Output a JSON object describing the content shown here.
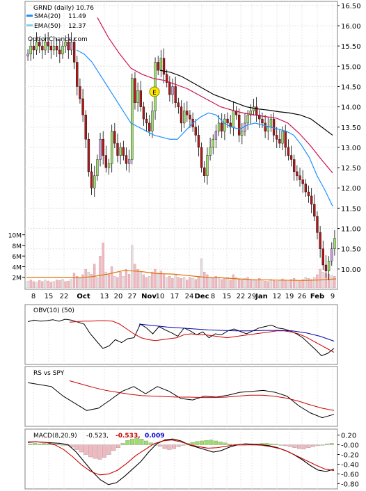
{
  "chart_data": [
    {
      "type": "candlestick",
      "title": "GRND (daily) 10.76",
      "watermark": "OptionChance.com",
      "event_marker": "E",
      "legend": [
        {
          "name": "SMA(20)",
          "value": "11.49",
          "color": "#1e90ff"
        },
        {
          "name": "EMA(50)",
          "value": "12.37",
          "color": "#87ceeb"
        }
      ],
      "ylim": [
        9.5,
        16.6
      ],
      "y_ticks": [
        "16.50",
        "16.00",
        "15.50",
        "15.00",
        "14.50",
        "14.00",
        "13.50",
        "13.00",
        "12.50",
        "12.00",
        "11.50",
        "11.00",
        "10.50",
        "10.00"
      ],
      "x_tick_labels": [
        "8",
        "15",
        "22",
        "Oct",
        "13",
        "20",
        "27",
        "Nov",
        "10",
        "17",
        "24",
        "Dec",
        "8",
        "15",
        "22",
        "29",
        "Jan",
        "12",
        "19",
        "26",
        "Feb",
        "9"
      ],
      "close_series": [
        15.3,
        15.5,
        15.4,
        15.6,
        15.5,
        15.4,
        15.6,
        15.5,
        15.4,
        15.5,
        15.4,
        15.3,
        15.5,
        15.6,
        15.4,
        15.6,
        15.1,
        14.5,
        14.2,
        13.8,
        13.2,
        12.4,
        12.0,
        12.3,
        12.7,
        13.2,
        12.8,
        12.5,
        12.6,
        13.4,
        13.1,
        12.8,
        13.0,
        12.8,
        12.6,
        12.7,
        14.7,
        14.1,
        14.4,
        14.0,
        13.7,
        13.6,
        13.4,
        13.9,
        15.1,
        14.9,
        15.2,
        14.8,
        14.6,
        14.3,
        14.5,
        14.1,
        14.0,
        13.6,
        13.9,
        13.8,
        13.7,
        13.5,
        13.3,
        13.0,
        12.5,
        12.3,
        12.8,
        13.0,
        13.2,
        13.4,
        13.6,
        13.4,
        13.7,
        13.6,
        13.5,
        13.9,
        13.8,
        13.3,
        13.4,
        13.6,
        13.8,
        13.9,
        14.0,
        13.8,
        13.7,
        13.6,
        13.4,
        13.5,
        13.7,
        13.3,
        13.2,
        13.1,
        13.4,
        13.0,
        12.8,
        12.7,
        12.4,
        12.3,
        12.2,
        12.1,
        11.9,
        11.8,
        11.6,
        11.3,
        10.9,
        10.5,
        10.1,
        9.95,
        10.2,
        10.5,
        10.76
      ],
      "sma20_series": [
        15.4,
        15.3,
        15.1,
        14.8,
        14.5,
        14.2,
        13.9,
        13.6,
        13.5,
        13.4,
        13.3,
        13.25,
        13.2,
        13.2,
        13.4,
        13.6,
        13.75,
        13.85,
        13.8,
        13.6,
        13.5,
        13.45,
        13.55,
        13.6,
        13.55,
        13.5,
        13.45,
        13.4,
        13.3,
        13.05,
        12.75,
        12.3,
        11.95,
        11.55
      ],
      "ema50_series": [
        16.2,
        15.7,
        15.3,
        14.95,
        14.8,
        14.7,
        14.65,
        14.55,
        14.45,
        14.3,
        14.15,
        14.0,
        13.92,
        13.85,
        13.8,
        13.76,
        13.72,
        13.6,
        13.35,
        13.05,
        12.7,
        12.37
      ],
      "sma50_series": [
        14.9,
        14.85,
        14.75,
        14.6,
        14.45,
        14.3,
        14.2,
        14.1,
        14.0,
        13.95,
        13.92,
        13.88,
        13.85,
        13.8,
        13.7,
        13.5,
        13.3
      ],
      "volume": {
        "y_ticks": [
          "10M",
          "8M",
          "6M",
          "4M",
          "2M"
        ],
        "ylim": [
          0,
          11
        ],
        "values_millions": [
          1.3,
          1.5,
          1.2,
          1.1,
          1.4,
          1.2,
          1.5,
          1.3,
          1.1,
          1.2,
          1.5,
          1.4,
          1.6,
          1.2,
          1.3,
          1.6,
          2.8,
          2.2,
          1.8,
          2.5,
          3.5,
          3.0,
          2.6,
          4.5,
          2.0,
          6.0,
          8.5,
          3.0,
          2.5,
          4.0,
          2.2,
          2.0,
          3.0,
          2.2,
          3.5,
          2.6,
          8.0,
          4.5,
          3.5,
          3.0,
          2.5,
          2.0,
          2.2,
          3.0,
          3.5,
          2.8,
          3.2,
          2.5,
          2.0,
          2.2,
          1.8,
          2.5,
          2.0,
          1.8,
          2.0,
          1.5,
          2.0,
          1.8,
          1.6,
          2.2,
          5.5,
          3.0,
          2.5,
          2.0,
          1.8,
          2.2,
          2.0,
          1.6,
          1.8,
          2.0,
          1.5,
          2.5,
          2.0,
          1.6,
          1.5,
          1.8,
          2.0,
          1.6,
          1.4,
          1.5,
          1.8,
          1.5,
          1.3,
          1.2,
          1.6,
          1.5,
          1.3,
          1.4,
          1.7,
          1.5,
          1.3,
          1.6,
          1.8,
          1.5,
          1.3,
          1.6,
          2.0,
          1.8,
          1.6,
          2.0,
          2.5,
          3.5,
          3.0,
          2.8,
          2.6,
          2.3,
          2.2
        ],
        "avg_line_millions": [
          2.0,
          2.0,
          2.0,
          1.9,
          2.1,
          2.6,
          3.3,
          3.1,
          2.7,
          2.6,
          2.3,
          2.0,
          1.9,
          1.7,
          1.55,
          1.5,
          1.45,
          1.4,
          1.5,
          1.7
        ]
      }
    },
    {
      "type": "line",
      "title": "OBV(10) (50)",
      "ylim": [
        0,
        100
      ],
      "series": [
        {
          "color": "#000000",
          "values": [
            85,
            88,
            86,
            87,
            89,
            86,
            90,
            88,
            84,
            80,
            60,
            45,
            30,
            35,
            48,
            42,
            50,
            52,
            80,
            72,
            60,
            75,
            68,
            62,
            55,
            72,
            66,
            58,
            64,
            52,
            60,
            58,
            66,
            70,
            65,
            60,
            66,
            72,
            75,
            78,
            72,
            70,
            66,
            60,
            52,
            40,
            28,
            15,
            20,
            30
          ]
        },
        {
          "color": "#cc0000",
          "values": [
            84,
            85,
            86,
            86,
            87,
            87,
            86,
            80,
            70,
            60,
            52,
            48,
            46,
            48,
            50,
            52,
            58,
            60,
            58,
            58,
            56,
            54,
            52,
            54,
            56,
            58,
            60,
            62,
            64,
            66,
            66,
            64,
            60,
            54,
            46,
            38,
            30,
            22
          ]
        },
        {
          "color": "#0000aa",
          "values": [
            80,
            77,
            74,
            72,
            70,
            68,
            67,
            66,
            66,
            67,
            67,
            66,
            62,
            55,
            45
          ]
        }
      ]
    },
    {
      "type": "line",
      "title": "RS vs SPY",
      "ylim": [
        0,
        100
      ],
      "series": [
        {
          "color": "#000000",
          "values": [
            88,
            84,
            80,
            60,
            45,
            30,
            35,
            52,
            70,
            80,
            65,
            80,
            70,
            55,
            52,
            60,
            58,
            62,
            68,
            70,
            72,
            68,
            60,
            40,
            25,
            15,
            22
          ]
        },
        {
          "color": "#cc0000",
          "values": [
            92,
            85,
            78,
            72,
            68,
            64,
            61,
            60,
            59,
            58,
            58,
            57,
            57,
            58,
            60,
            62,
            62,
            60,
            56,
            50,
            42,
            35,
            30
          ]
        }
      ]
    },
    {
      "type": "bar",
      "title": "MACD(8,20,9)",
      "readouts": [
        "-0.523,",
        "-0.533,",
        "0.009"
      ],
      "readout_colors": [
        "#000000",
        "#cc0000",
        "#0000cc"
      ],
      "y_ticks": [
        "0.20",
        "-0.00",
        "-0.20",
        "-0.40",
        "-0.60",
        "-0.80"
      ],
      "ylim": [
        -0.88,
        0.28
      ],
      "histogram": [
        0.02,
        0.03,
        0.02,
        0.03,
        0.02,
        0.02,
        0.01,
        0.0,
        -0.02,
        -0.05,
        -0.1,
        -0.15,
        -0.2,
        -0.25,
        -0.28,
        -0.3,
        -0.26,
        -0.2,
        -0.12,
        -0.06,
        0.03,
        0.09,
        0.12,
        0.14,
        0.12,
        0.08,
        0.04,
        0.0,
        -0.03,
        -0.08,
        -0.1,
        -0.08,
        -0.04,
        0.0,
        0.03,
        0.05,
        0.07,
        0.08,
        0.09,
        0.1,
        0.08,
        0.06,
        0.04,
        0.02,
        0.0,
        -0.02,
        -0.02,
        -0.01,
        0.0,
        0.02,
        0.03,
        0.03,
        0.02,
        0.01,
        0.0,
        -0.02,
        -0.04,
        -0.06,
        -0.08,
        -0.09,
        -0.06,
        -0.04,
        -0.02,
        0.0,
        0.02,
        0.03
      ],
      "macd_line": [
        0.05,
        0.06,
        0.05,
        0.04,
        0.03,
        0.0,
        -0.15,
        -0.35,
        -0.55,
        -0.72,
        -0.82,
        -0.78,
        -0.65,
        -0.5,
        -0.35,
        -0.15,
        0.02,
        0.1,
        0.12,
        0.08,
        0.0,
        -0.05,
        -0.1,
        -0.15,
        -0.12,
        -0.05,
        0.0,
        0.02,
        0.01,
        0.0,
        -0.02,
        -0.06,
        -0.12,
        -0.2,
        -0.3,
        -0.42,
        -0.52,
        -0.55,
        -0.5
      ],
      "signal_line": [
        0.06,
        0.06,
        0.05,
        0.0,
        -0.1,
        -0.25,
        -0.42,
        -0.55,
        -0.62,
        -0.6,
        -0.52,
        -0.38,
        -0.22,
        -0.1,
        0.02,
        0.08,
        0.1,
        0.06,
        0.0,
        -0.04,
        -0.07,
        -0.06,
        -0.03,
        0.0,
        0.01,
        0.0,
        -0.01,
        -0.04,
        -0.08,
        -0.15,
        -0.24,
        -0.33,
        -0.42,
        -0.5,
        -0.53
      ]
    }
  ]
}
